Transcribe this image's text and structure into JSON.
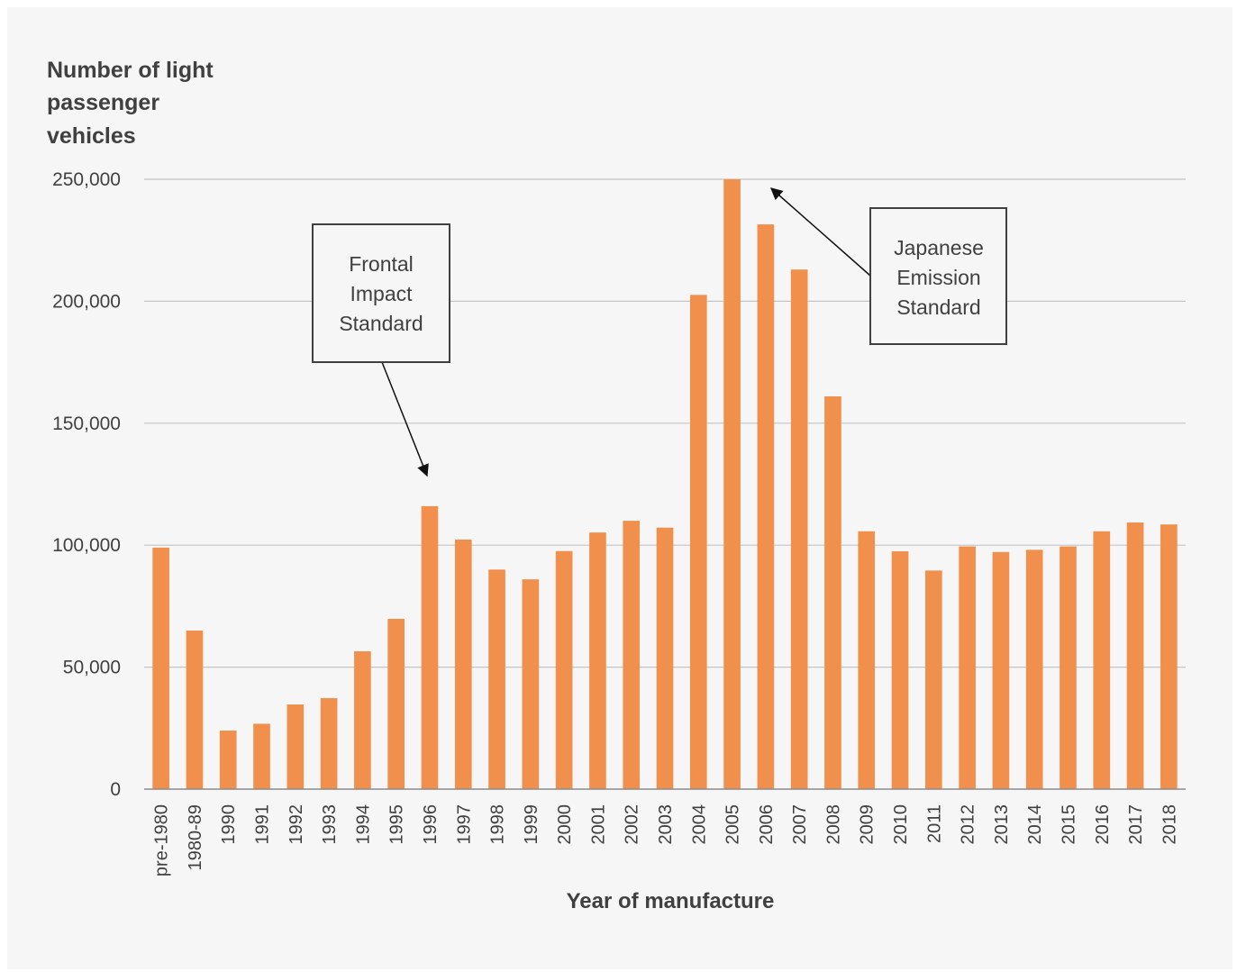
{
  "chart_data": {
    "type": "bar",
    "ylabel": [
      "Number of light",
      "passenger",
      "vehicles"
    ],
    "xlabel": "Year of manufacture",
    "ylim": [
      0,
      250000
    ],
    "yticks": [
      0,
      50000,
      100000,
      150000,
      200000,
      250000
    ],
    "ytick_labels": [
      "0",
      "50,000",
      "100,000",
      "150,000",
      "200,000",
      "250,000"
    ],
    "grid": "horizontal",
    "bar_color": "#f0904c",
    "categories": [
      "pre-1980",
      "1980-89",
      "1990",
      "1991",
      "1992",
      "1993",
      "1994",
      "1995",
      "1996",
      "1997",
      "1998",
      "1999",
      "2000",
      "2001",
      "2002",
      "2003",
      "2004",
      "2005",
      "2006",
      "2007",
      "2008",
      "2009",
      "2010",
      "2011",
      "2012",
      "2013",
      "2014",
      "2015",
      "2016",
      "2017",
      "2018"
    ],
    "values": [
      99000,
      65000,
      24000,
      26800,
      34700,
      37300,
      56500,
      69800,
      116000,
      102300,
      90000,
      86000,
      97600,
      105200,
      110000,
      107200,
      202600,
      250000,
      231500,
      213000,
      161000,
      105700,
      97500,
      89600,
      99500,
      97200,
      98100,
      99500,
      105700,
      109300,
      108500
    ],
    "annotations": [
      {
        "lines": [
          "Frontal",
          "Impact",
          "Standard"
        ],
        "points_to": "1996"
      },
      {
        "lines": [
          "Japanese",
          "Emission",
          "Standard"
        ],
        "points_to": "2005"
      }
    ]
  }
}
